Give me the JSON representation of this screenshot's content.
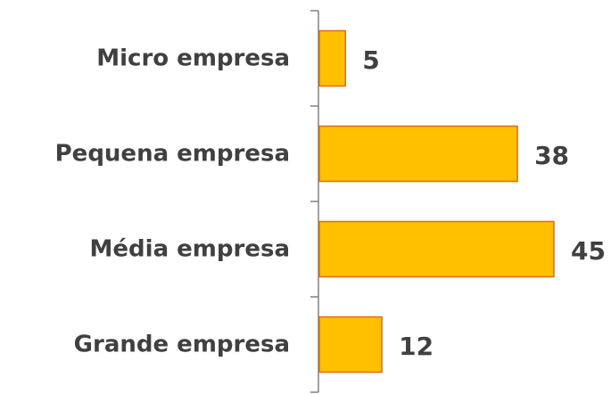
{
  "chart_data": {
    "type": "bar",
    "orientation": "horizontal",
    "categories": [
      "Micro empresa",
      "Pequena empresa",
      "Média empresa",
      "Grande empresa"
    ],
    "values": [
      5,
      38,
      45,
      12
    ],
    "title": "",
    "xlabel": "",
    "ylabel": "",
    "xlim": [
      0,
      45
    ],
    "grid": false,
    "legend": "none",
    "colors": {
      "bar_fill": "#FFC000",
      "bar_stroke": "#E46C0A",
      "axis": "#808080",
      "text": "#404040"
    }
  }
}
